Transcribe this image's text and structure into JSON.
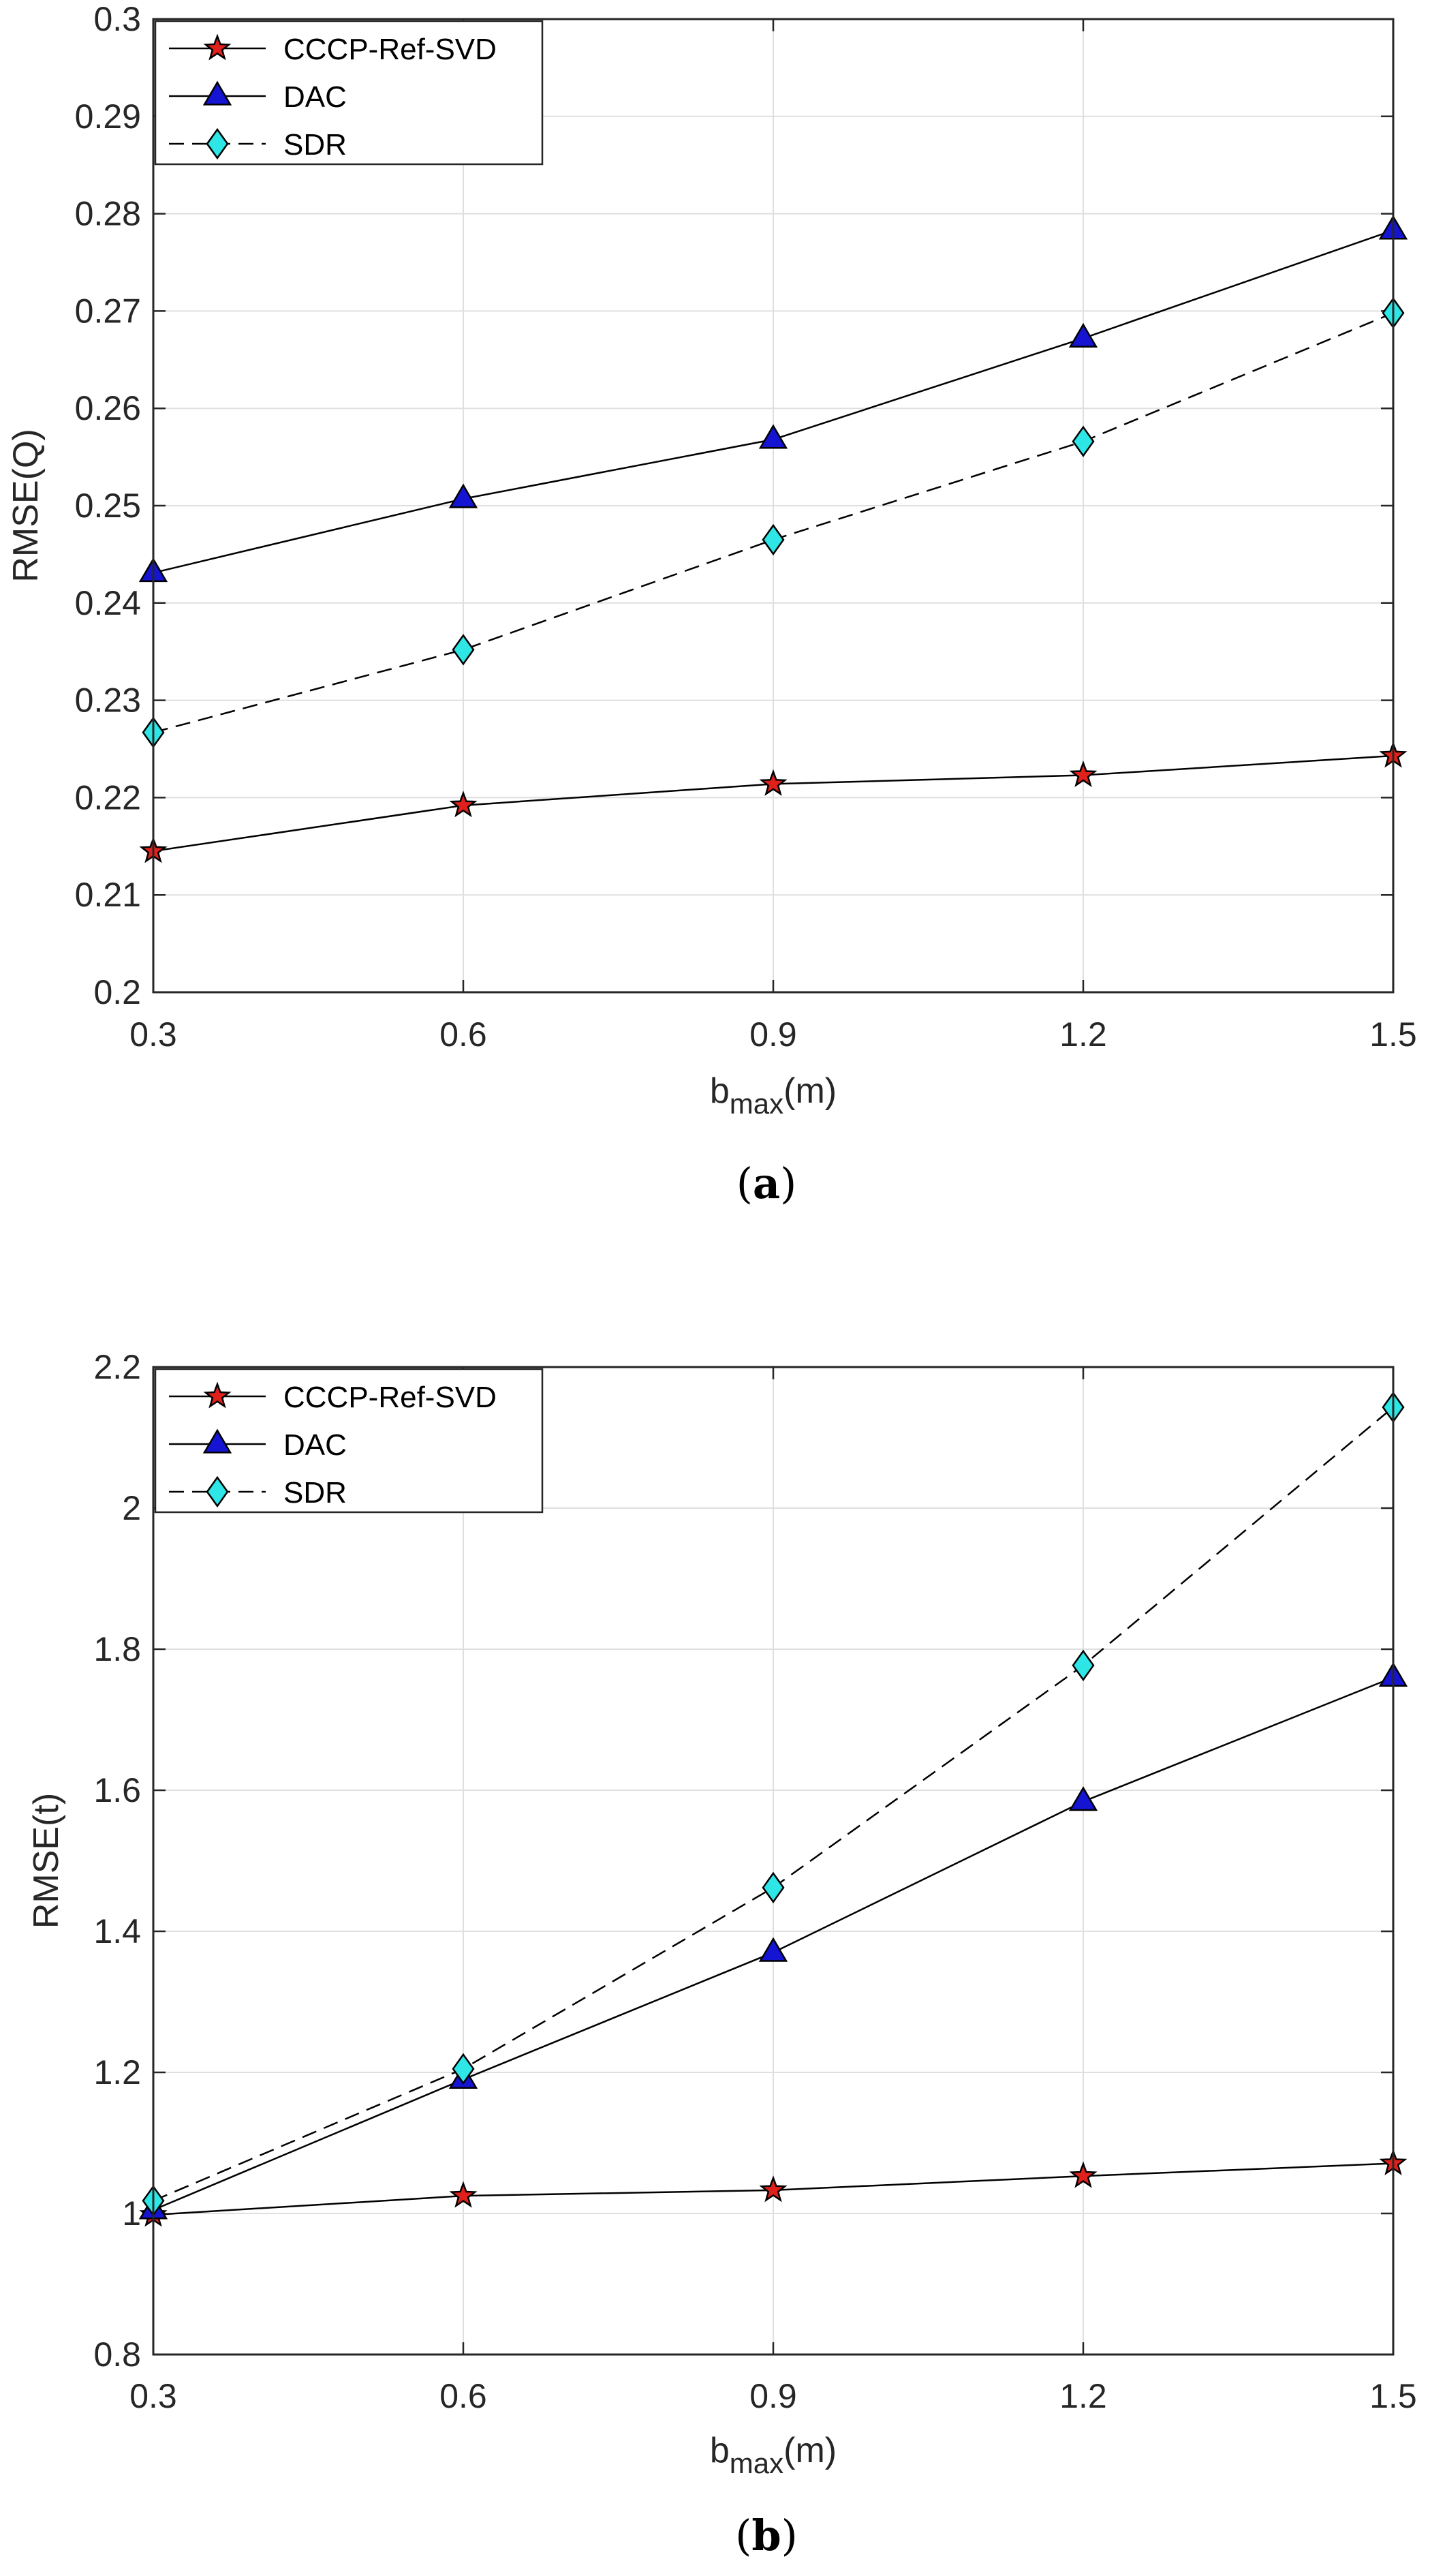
{
  "chart_data": [
    {
      "id": "a",
      "type": "line",
      "caption_letter": "a",
      "xlabel": {
        "base": "b",
        "sub": "max",
        "suffix": "(m)"
      },
      "ylabel": "RMSE(Q)",
      "x": [
        0.3,
        0.6,
        0.9,
        1.2,
        1.5
      ],
      "xlim": [
        0.3,
        1.5
      ],
      "ylim": [
        0.2,
        0.3
      ],
      "xticks": [
        0.3,
        0.6,
        0.9,
        1.2,
        1.5
      ],
      "xtick_labels": [
        "0.3",
        "0.6",
        "0.9",
        "1.2",
        "1.5"
      ],
      "yticks": [
        0.2,
        0.21,
        0.22,
        0.23,
        0.24,
        0.25,
        0.26,
        0.27,
        0.28,
        0.29,
        0.3
      ],
      "ytick_labels": [
        "0.2",
        "0.21",
        "0.22",
        "0.23",
        "0.24",
        "0.25",
        "0.26",
        "0.27",
        "0.28",
        "0.29",
        "0.3"
      ],
      "grid": true,
      "legend_position": "top-left",
      "series": [
        {
          "name": "CCCP-Ref-SVD",
          "values": [
            0.2145,
            0.2192,
            0.2214,
            0.2223,
            0.2243
          ],
          "marker": "star",
          "line": "solid",
          "color": "#e0201b"
        },
        {
          "name": "DAC",
          "values": [
            0.2431,
            0.2507,
            0.2568,
            0.2672,
            0.2783
          ],
          "marker": "triangle",
          "line": "solid",
          "color": "#1414d2"
        },
        {
          "name": "SDR",
          "values": [
            0.2267,
            0.2352,
            0.2465,
            0.2566,
            0.2698
          ],
          "marker": "diamond",
          "line": "dashed",
          "color": "#2ee6e6"
        }
      ]
    },
    {
      "id": "b",
      "type": "line",
      "caption_letter": "b",
      "xlabel": {
        "base": "b",
        "sub": "max",
        "suffix": "(m)"
      },
      "ylabel": "RMSE(t)",
      "x": [
        0.3,
        0.6,
        0.9,
        1.2,
        1.5
      ],
      "xlim": [
        0.3,
        1.5
      ],
      "ylim": [
        0.8,
        2.2
      ],
      "xticks": [
        0.3,
        0.6,
        0.9,
        1.2,
        1.5
      ],
      "xtick_labels": [
        "0.3",
        "0.6",
        "0.9",
        "1.2",
        "1.5"
      ],
      "yticks": [
        0.8,
        1.0,
        1.2,
        1.4,
        1.6,
        1.8,
        2.0,
        2.2
      ],
      "ytick_labels": [
        "0.8",
        "1",
        "1.2",
        "1.4",
        "1.6",
        "1.8",
        "2",
        "2.2"
      ],
      "grid": true,
      "legend_position": "top-left",
      "series": [
        {
          "name": "CCCP-Ref-SVD",
          "values": [
            0.998,
            1.025,
            1.033,
            1.053,
            1.071
          ],
          "marker": "star",
          "line": "solid",
          "color": "#e0201b"
        },
        {
          "name": "DAC",
          "values": [
            1.005,
            1.19,
            1.37,
            1.584,
            1.76
          ],
          "marker": "triangle",
          "line": "solid",
          "color": "#1414d2"
        },
        {
          "name": "SDR",
          "values": [
            1.018,
            1.205,
            1.462,
            1.777,
            2.143
          ],
          "marker": "diamond",
          "line": "dashed",
          "color": "#2ee6e6"
        }
      ]
    }
  ]
}
